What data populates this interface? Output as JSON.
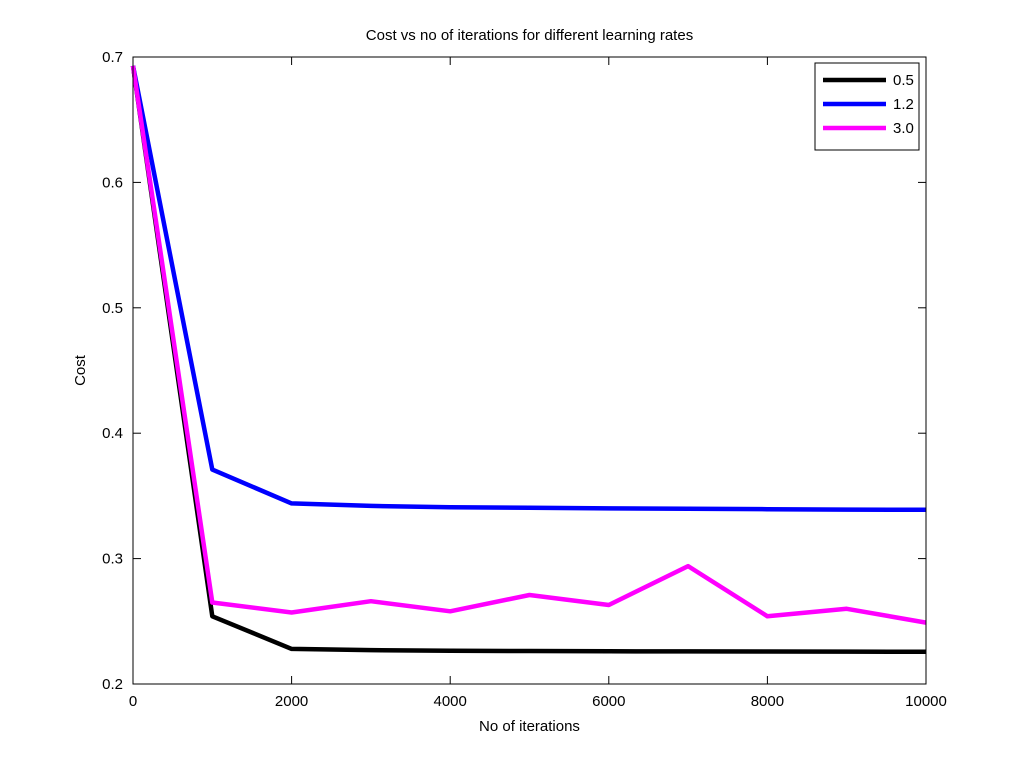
{
  "chart_data": {
    "type": "line",
    "title": "Cost vs no of iterations for different learning rates",
    "xlabel": "No of iterations",
    "ylabel": "Cost",
    "xlim": [
      0,
      10000
    ],
    "ylim": [
      0.2,
      0.7
    ],
    "xticks": [
      0,
      2000,
      4000,
      6000,
      8000,
      10000
    ],
    "xtick_labels": [
      "0",
      "2000",
      "4000",
      "6000",
      "8000",
      "10000"
    ],
    "yticks": [
      0.2,
      0.3,
      0.4,
      0.5,
      0.6,
      0.7
    ],
    "ytick_labels": [
      "0.2",
      "0.3",
      "0.4",
      "0.5",
      "0.6",
      "0.7"
    ],
    "grid": false,
    "legend_position": "top-right",
    "x": [
      0,
      1000,
      2000,
      3000,
      4000,
      5000,
      6000,
      7000,
      8000,
      9000,
      10000
    ],
    "series": [
      {
        "name": "0.5",
        "color": "#000000",
        "values": [
          0.693,
          0.254,
          0.228,
          0.227,
          0.2265,
          0.2263,
          0.2261,
          0.226,
          0.2259,
          0.2258,
          0.2257
        ]
      },
      {
        "name": "1.2",
        "color": "#0000ff",
        "values": [
          0.693,
          0.371,
          0.344,
          0.342,
          0.341,
          0.3405,
          0.34,
          0.3397,
          0.3394,
          0.3391,
          0.3389
        ]
      },
      {
        "name": "3.0",
        "color": "#ff00ff",
        "values": [
          0.693,
          0.265,
          0.257,
          0.266,
          0.258,
          0.271,
          0.263,
          0.294,
          0.254,
          0.26,
          0.249
        ]
      }
    ]
  }
}
